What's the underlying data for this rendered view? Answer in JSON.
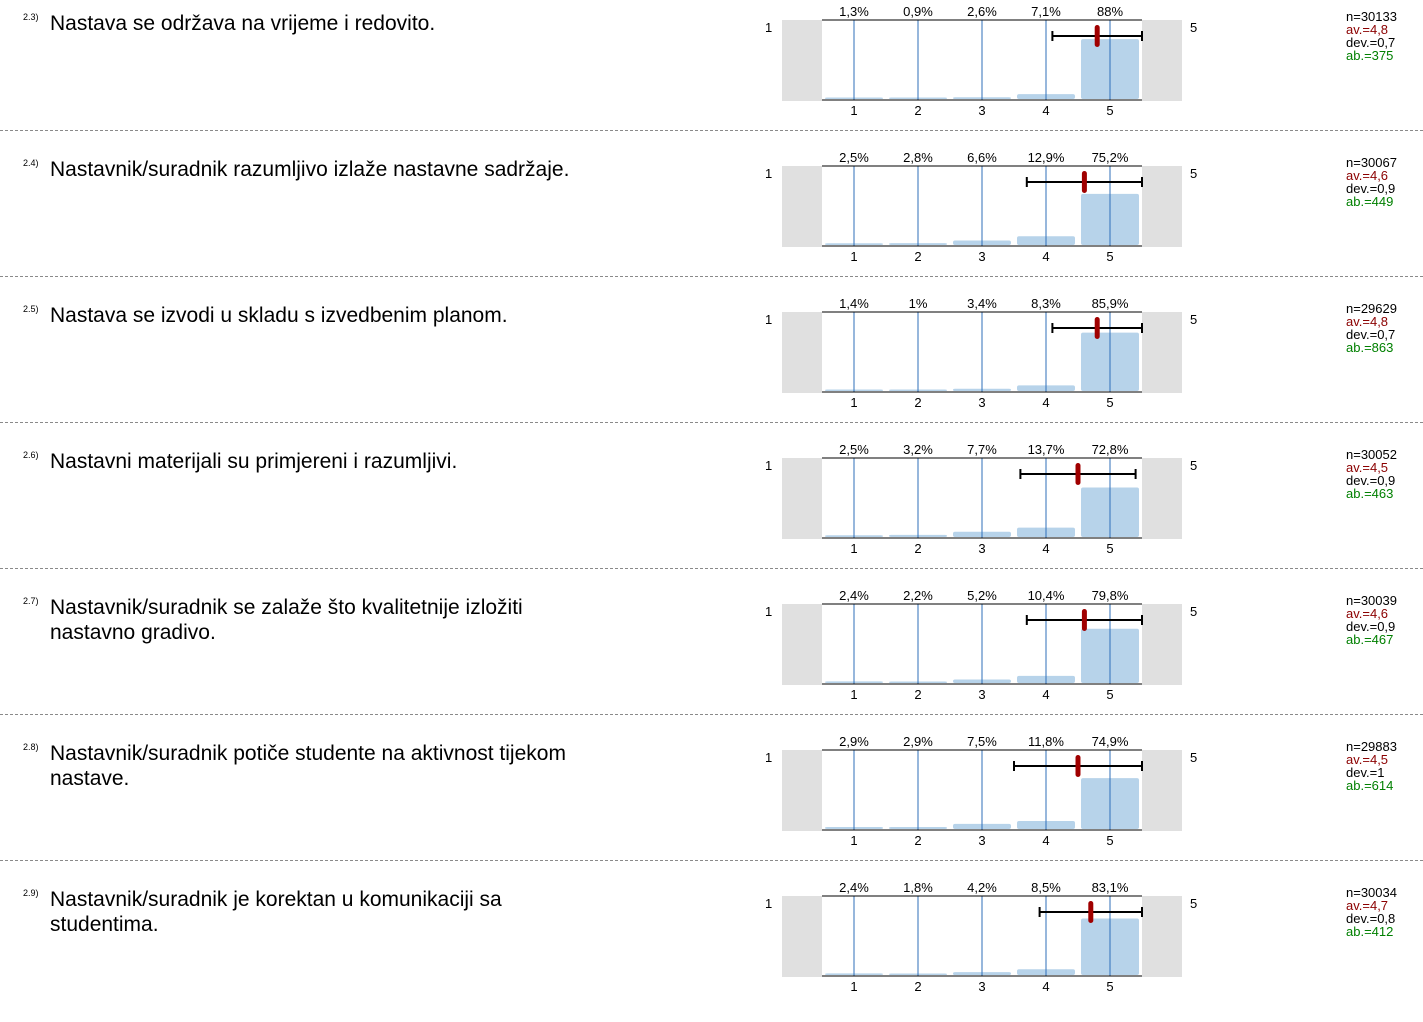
{
  "scale": {
    "low_label": "1",
    "high_label": "5",
    "tick_labels": [
      "1",
      "2",
      "3",
      "4",
      "5"
    ]
  },
  "colors": {
    "bar": "#b7d3ea",
    "gridline": "#2f6fba",
    "side_panel": "#e0e0e0",
    "mean_marker": "#a00000",
    "n_text": "#000000",
    "av_text": "#8b0000",
    "dev_text": "#000000",
    "ab_text": "#008000"
  },
  "chart_data": [
    {
      "type": "bar",
      "number": "2.3)",
      "question": "Nastava se održava na vrijeme i redovito.",
      "categories": [
        "1",
        "2",
        "3",
        "4",
        "5"
      ],
      "values": [
        1.3,
        0.9,
        2.6,
        7.1,
        88
      ],
      "value_labels": [
        "1,3%",
        "0,9%",
        "2,6%",
        "7,1%",
        "88%"
      ],
      "mean": 4.8,
      "dev": 0.7,
      "whisker": [
        4.1,
        5.5
      ],
      "stats": {
        "n": "n=30133",
        "av": "av.=4,8",
        "dev": "dev.=0,7",
        "ab": "ab.=375"
      }
    },
    {
      "type": "bar",
      "number": "2.4)",
      "question": "Nastavnik/suradnik razumljivo izlaže nastavne sadržaje.",
      "categories": [
        "1",
        "2",
        "3",
        "4",
        "5"
      ],
      "values": [
        2.5,
        2.8,
        6.6,
        12.9,
        75.2
      ],
      "value_labels": [
        "2,5%",
        "2,8%",
        "6,6%",
        "12,9%",
        "75,2%"
      ],
      "mean": 4.6,
      "dev": 0.9,
      "whisker": [
        3.7,
        5.5
      ],
      "stats": {
        "n": "n=30067",
        "av": "av.=4,6",
        "dev": "dev.=0,9",
        "ab": "ab.=449"
      }
    },
    {
      "type": "bar",
      "number": "2.5)",
      "question": "Nastava se izvodi u skladu s izvedbenim planom.",
      "categories": [
        "1",
        "2",
        "3",
        "4",
        "5"
      ],
      "values": [
        1.4,
        1,
        3.4,
        8.3,
        85.9
      ],
      "value_labels": [
        "1,4%",
        "1%",
        "3,4%",
        "8,3%",
        "85,9%"
      ],
      "mean": 4.8,
      "dev": 0.7,
      "whisker": [
        4.1,
        5.5
      ],
      "stats": {
        "n": "n=29629",
        "av": "av.=4,8",
        "dev": "dev.=0,7",
        "ab": "ab.=863"
      }
    },
    {
      "type": "bar",
      "number": "2.6)",
      "question": "Nastavni materijali su primjereni i razumljivi.",
      "categories": [
        "1",
        "2",
        "3",
        "4",
        "5"
      ],
      "values": [
        2.5,
        3.2,
        7.7,
        13.7,
        72.8
      ],
      "value_labels": [
        "2,5%",
        "3,2%",
        "7,7%",
        "13,7%",
        "72,8%"
      ],
      "mean": 4.5,
      "dev": 0.9,
      "whisker": [
        3.6,
        5.4
      ],
      "stats": {
        "n": "n=30052",
        "av": "av.=4,5",
        "dev": "dev.=0,9",
        "ab": "ab.=463"
      }
    },
    {
      "type": "bar",
      "number": "2.7)",
      "question": "Nastavnik/suradnik se zalaže što kvalitetnije izložiti nastavno gradivo.",
      "categories": [
        "1",
        "2",
        "3",
        "4",
        "5"
      ],
      "values": [
        2.4,
        2.2,
        5.2,
        10.4,
        79.8
      ],
      "value_labels": [
        "2,4%",
        "2,2%",
        "5,2%",
        "10,4%",
        "79,8%"
      ],
      "mean": 4.6,
      "dev": 0.9,
      "whisker": [
        3.7,
        5.5
      ],
      "stats": {
        "n": "n=30039",
        "av": "av.=4,6",
        "dev": "dev.=0,9",
        "ab": "ab.=467"
      }
    },
    {
      "type": "bar",
      "number": "2.8)",
      "question": "Nastavnik/suradnik potiče studente na aktivnost tijekom nastave.",
      "categories": [
        "1",
        "2",
        "3",
        "4",
        "5"
      ],
      "values": [
        2.9,
        2.9,
        7.5,
        11.8,
        74.9
      ],
      "value_labels": [
        "2,9%",
        "2,9%",
        "7,5%",
        "11,8%",
        "74,9%"
      ],
      "mean": 4.5,
      "dev": 1,
      "whisker": [
        3.5,
        5.5
      ],
      "stats": {
        "n": "n=29883",
        "av": "av.=4,5",
        "dev": "dev.=1",
        "ab": "ab.=614"
      }
    },
    {
      "type": "bar",
      "number": "2.9)",
      "question": "Nastavnik/suradnik je korektan u komunikaciji sa studentima.",
      "categories": [
        "1",
        "2",
        "3",
        "4",
        "5"
      ],
      "values": [
        2.4,
        1.8,
        4.2,
        8.5,
        83.1
      ],
      "value_labels": [
        "2,4%",
        "1,8%",
        "4,2%",
        "8,5%",
        "83,1%"
      ],
      "mean": 4.7,
      "dev": 0.8,
      "whisker": [
        3.9,
        5.5
      ],
      "stats": {
        "n": "n=30034",
        "av": "av.=4,7",
        "dev": "dev.=0,8",
        "ab": "ab.=412"
      }
    }
  ]
}
